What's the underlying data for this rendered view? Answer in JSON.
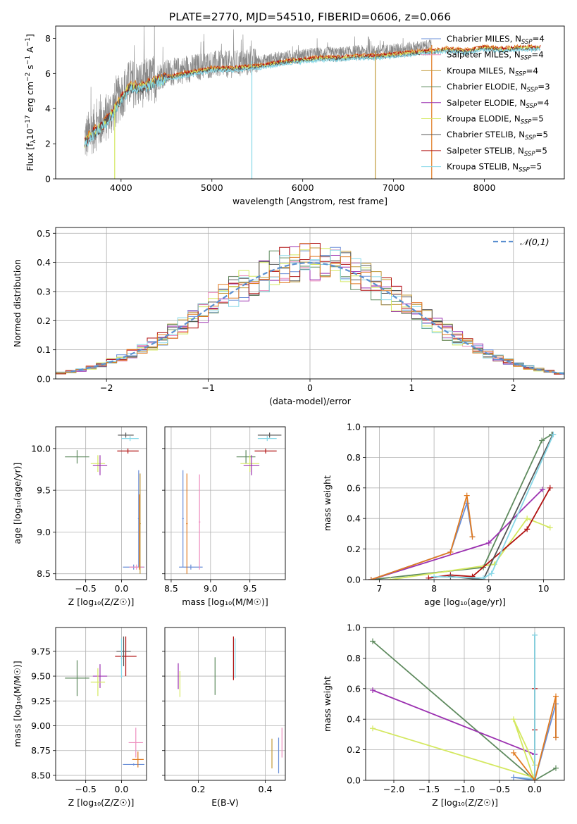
{
  "figure": {
    "title": "PLATE=2770, MJD=54510, FIBERID=0606, z=0.066"
  },
  "colors": {
    "chabrier_miles": "#6a8fd8",
    "salpeter_miles": "#ee8fbf",
    "kroupa_miles": "#c09a3a",
    "chabrier_elodie": "#5e8a5e",
    "salpeter_elodie": "#9b30b0",
    "kroupa_elodie": "#d4e860",
    "chabrier_stelib": "#555555",
    "salpeter_stelib": "#b01010",
    "kroupa_stelib": "#88d8e8",
    "orange_fit": "#e07a20",
    "cyan_fit": "#70d0d8",
    "gaussian": "#5b8fd0",
    "data_gray": "#888888"
  },
  "chart_data": [
    {
      "id": "spectrum",
      "type": "line",
      "title": "PLATE=2770, MJD=54510, FIBERID=0606, z=0.066",
      "xlabel": "wavelength [Angstrom, rest frame]",
      "ylabel_parts": [
        "Flux [f",
        "λ",
        "10",
        "−17",
        " erg cm",
        "−2",
        " s",
        "−1",
        " A",
        "−1",
        "]"
      ],
      "xlim": [
        3280,
        8880
      ],
      "ylim": [
        0,
        8.7
      ],
      "xticks": [
        4000,
        5000,
        6000,
        7000,
        8000
      ],
      "yticks": [
        0,
        2,
        4,
        6,
        8
      ],
      "grid": false,
      "legend_position": "right",
      "legend": [
        {
          "name": "Chabrier MILES",
          "nssp": "4",
          "color_key": "chabrier_miles"
        },
        {
          "name": "Salpeter MILES",
          "nssp": "4",
          "color_key": "salpeter_miles"
        },
        {
          "name": "Kroupa MILES",
          "nssp": "4",
          "color_key": "kroupa_miles"
        },
        {
          "name": "Chabrier ELODIE",
          "nssp": "3",
          "color_key": "chabrier_elodie"
        },
        {
          "name": "Salpeter ELODIE",
          "nssp": "4",
          "color_key": "salpeter_elodie"
        },
        {
          "name": "Kroupa ELODIE",
          "nssp": "5",
          "color_key": "kroupa_elodie"
        },
        {
          "name": "Chabrier STELIB",
          "nssp": "5",
          "color_key": "chabrier_stelib"
        },
        {
          "name": "Salpeter STELIB",
          "nssp": "5",
          "color_key": "salpeter_stelib"
        },
        {
          "name": "Kroupa STELIB",
          "nssp": "5",
          "color_key": "kroupa_stelib"
        }
      ],
      "nssp_label_prefix": "N",
      "nssp_label_sub": "SSP",
      "data_envelope": [
        [
          3600,
          2.4
        ],
        [
          3700,
          3.0
        ],
        [
          3800,
          3.4
        ],
        [
          3900,
          4.0
        ],
        [
          4000,
          4.9
        ],
        [
          4100,
          5.6
        ],
        [
          4200,
          5.5
        ],
        [
          4300,
          5.7
        ],
        [
          4400,
          5.9
        ],
        [
          4500,
          6.1
        ],
        [
          4600,
          6.2
        ],
        [
          4700,
          6.3
        ],
        [
          4800,
          6.4
        ],
        [
          4900,
          6.5
        ],
        [
          5000,
          6.6
        ],
        [
          5200,
          6.6
        ],
        [
          5400,
          6.7
        ],
        [
          5600,
          6.8
        ],
        [
          5800,
          7.0
        ],
        [
          6000,
          7.1
        ],
        [
          6200,
          7.2
        ],
        [
          6400,
          7.2
        ],
        [
          6600,
          7.3
        ],
        [
          6800,
          7.3
        ],
        [
          7000,
          7.4
        ],
        [
          7200,
          7.5
        ],
        [
          7400,
          7.6
        ],
        [
          7600,
          7.7
        ],
        [
          7800,
          7.6
        ],
        [
          8000,
          7.8
        ],
        [
          8200,
          7.7
        ],
        [
          8400,
          7.8
        ],
        [
          8600,
          7.8
        ]
      ],
      "data_xrange": [
        3600,
        7420
      ],
      "model_xrange": [
        3600,
        8620
      ],
      "dips": [
        {
          "x": 3930,
          "min": 0
        },
        {
          "x": 5440,
          "min": 0
        },
        {
          "x": 6800,
          "min": 0
        },
        {
          "x": 7420,
          "min": 0
        }
      ]
    },
    {
      "id": "residuals",
      "type": "step",
      "xlabel": "(data-model)/error",
      "ylabel": "Normed distribution",
      "xlim": [
        -2.5,
        2.5
      ],
      "ylim": [
        0,
        0.52
      ],
      "xticks": [
        -2,
        -1,
        0,
        1,
        2
      ],
      "xtick_labels": [
        "−2",
        "−1",
        "0",
        "1",
        "2"
      ],
      "yticks": [
        0.0,
        0.1,
        0.2,
        0.3,
        0.4,
        0.5
      ],
      "ytick_labels": [
        "0.0",
        "0.1",
        "0.2",
        "0.3",
        "0.4",
        "0.5"
      ],
      "grid": true,
      "bin_edges_start": -2.5,
      "bin_width": 0.1,
      "legend_label": "𝒩(0,1)",
      "legend_position": "top-right"
    },
    {
      "id": "age_vs_Z",
      "type": "errorbar",
      "xlabel": "Z [log₁₀(Z/Z☉)]",
      "ylabel": "age  [log₁₀(age/yr)]",
      "xlim": [
        -0.92,
        0.35
      ],
      "ylim": [
        8.43,
        10.26
      ],
      "xticks": [
        -0.5,
        0.0
      ],
      "xtick_labels": [
        "−0.5",
        "0.0"
      ],
      "yticks": [
        8.5,
        9.0,
        9.5,
        10.0
      ],
      "ytick_labels": [
        "8.5",
        "9.0",
        "9.5",
        "10.0"
      ],
      "grid": true,
      "points": [
        {
          "x": -0.62,
          "y": 9.9,
          "xerr": 0.17,
          "yerr": 0.08,
          "c": "chabrier_elodie"
        },
        {
          "x": -0.33,
          "y": 9.82,
          "xerr": 0.1,
          "yerr": 0.1,
          "c": "kroupa_elodie"
        },
        {
          "x": -0.3,
          "y": 9.8,
          "xerr": 0.1,
          "yerr": 0.12,
          "c": "salpeter_elodie"
        },
        {
          "x": 0.06,
          "y": 10.16,
          "xerr": 0.11,
          "yerr": 0.03,
          "c": "chabrier_stelib"
        },
        {
          "x": 0.12,
          "y": 10.12,
          "xerr": 0.12,
          "yerr": 0.03,
          "c": "kroupa_stelib"
        },
        {
          "x": 0.09,
          "y": 9.97,
          "xerr": 0.15,
          "yerr": 0.03,
          "c": "salpeter_stelib"
        },
        {
          "x": 0.17,
          "y": 8.58,
          "xerr": 0.15,
          "yerr": 0.03,
          "c": "chabrier_miles"
        },
        {
          "x": 0.21,
          "y": 8.58,
          "xerr": 0.1,
          "yerr": 0.03,
          "c": "salpeter_miles"
        },
        {
          "x": 0.24,
          "y": 9.16,
          "xerr": 0.01,
          "yerr": 0.58,
          "c": "chabrier_miles"
        },
        {
          "x": 0.26,
          "y": 9.1,
          "xerr": 0.01,
          "yerr": 0.6,
          "c": "kroupa_miles"
        },
        {
          "x": 0.25,
          "y": 9.0,
          "xerr": 0.01,
          "yerr": 0.45,
          "c": "orange_fit"
        }
      ]
    },
    {
      "id": "age_vs_mass",
      "type": "errorbar",
      "xlabel": "mass [log₁₀(M/M☉)]",
      "ylabel": "",
      "xlim": [
        8.42,
        9.95
      ],
      "ylim": [
        8.43,
        10.26
      ],
      "xticks": [
        8.5,
        9.0,
        9.5
      ],
      "xtick_labels": [
        "8.5",
        "9.0",
        "9.5"
      ],
      "yticks": [
        8.5,
        9.0,
        9.5,
        10.0
      ],
      "ytick_labels": [
        "",
        "",
        "",
        ""
      ],
      "grid": true,
      "points": [
        {
          "x": 9.45,
          "y": 9.9,
          "xerr": 0.12,
          "yerr": 0.08,
          "c": "chabrier_elodie"
        },
        {
          "x": 9.5,
          "y": 9.82,
          "xerr": 0.12,
          "yerr": 0.1,
          "c": "kroupa_elodie"
        },
        {
          "x": 9.52,
          "y": 9.8,
          "xerr": 0.1,
          "yerr": 0.12,
          "c": "salpeter_elodie"
        },
        {
          "x": 9.75,
          "y": 10.16,
          "xerr": 0.15,
          "yerr": 0.03,
          "c": "chabrier_stelib"
        },
        {
          "x": 9.72,
          "y": 10.12,
          "xerr": 0.12,
          "yerr": 0.03,
          "c": "kroupa_stelib"
        },
        {
          "x": 9.7,
          "y": 9.97,
          "xerr": 0.14,
          "yerr": 0.03,
          "c": "salpeter_stelib"
        },
        {
          "x": 8.75,
          "y": 8.58,
          "xerr": 0.15,
          "yerr": 0.03,
          "c": "chabrier_miles"
        },
        {
          "x": 8.65,
          "y": 9.16,
          "xerr": 0.01,
          "yerr": 0.58,
          "c": "chabrier_miles"
        },
        {
          "x": 8.7,
          "y": 9.1,
          "xerr": 0.01,
          "yerr": 0.6,
          "c": "orange_fit"
        },
        {
          "x": 8.86,
          "y": 9.12,
          "xerr": 0.01,
          "yerr": 0.57,
          "c": "salpeter_miles"
        }
      ]
    },
    {
      "id": "weight_vs_age",
      "type": "line",
      "xlabel": "age  [log₁₀(age/yr)]",
      "ylabel": "mass weight",
      "xlim": [
        6.75,
        10.38
      ],
      "ylim": [
        0,
        1.0
      ],
      "xticks": [
        7,
        8,
        9,
        10
      ],
      "xtick_labels": [
        "7",
        "8",
        "9",
        "10"
      ],
      "yticks": [
        0.0,
        0.2,
        0.4,
        0.6,
        0.8,
        1.0
      ],
      "ytick_labels": [
        "0.0",
        "0.2",
        "0.4",
        "0.6",
        "0.8",
        "1.0"
      ],
      "grid": true,
      "series": [
        {
          "c": "chabrier_elodie",
          "x": [
            6.85,
            8.9,
            9.97,
            10.15
          ],
          "y": [
            0.0,
            0.08,
            0.91,
            0.95
          ]
        },
        {
          "c": "salpeter_elodie",
          "x": [
            6.85,
            9.0,
            9.98
          ],
          "y": [
            0.0,
            0.24,
            0.59
          ]
        },
        {
          "c": "kroupa_elodie",
          "x": [
            7.2,
            9.1,
            9.7,
            10.12
          ],
          "y": [
            0.0,
            0.1,
            0.4,
            0.34
          ]
        },
        {
          "c": "salpeter_stelib",
          "x": [
            7.9,
            8.3,
            8.7,
            9.7,
            10.12
          ],
          "y": [
            0.01,
            0.03,
            0.02,
            0.33,
            0.6
          ]
        },
        {
          "c": "chabrier_stelib",
          "x": [
            8.3,
            8.9,
            10.17
          ],
          "y": [
            0.02,
            0.0,
            0.95
          ]
        },
        {
          "c": "kroupa_stelib",
          "x": [
            8.0,
            8.9,
            9.05,
            10.18
          ],
          "y": [
            0.02,
            0.01,
            0.04,
            0.95
          ]
        },
        {
          "c": "chabrier_miles",
          "x": [
            6.85,
            8.3,
            8.6,
            8.7
          ],
          "y": [
            0.0,
            0.18,
            0.5,
            0.28
          ]
        },
        {
          "c": "orange_fit",
          "x": [
            6.85,
            8.3,
            8.6,
            8.7
          ],
          "y": [
            0.0,
            0.18,
            0.55,
            0.28
          ]
        }
      ]
    },
    {
      "id": "mass_vs_Z",
      "type": "errorbar",
      "xlabel": "Z [log₁₀(Z/Z☉)]",
      "ylabel": "mass [log₁₀(M/M☉)]",
      "xlim": [
        -0.92,
        0.35
      ],
      "ylim": [
        8.45,
        9.99
      ],
      "xticks": [
        -0.5,
        0.0
      ],
      "xtick_labels": [
        "−0.5",
        "0.0"
      ],
      "yticks": [
        8.5,
        8.75,
        9.0,
        9.25,
        9.5,
        9.75
      ],
      "ytick_labels": [
        "8.50",
        "8.75",
        "9.00",
        "9.25",
        "9.50",
        "9.75"
      ],
      "grid": true,
      "points": [
        {
          "x": -0.62,
          "y": 9.48,
          "xerr": 0.17,
          "yerr": 0.18,
          "c": "chabrier_elodie"
        },
        {
          "x": -0.3,
          "y": 9.5,
          "xerr": 0.1,
          "yerr": 0.12,
          "c": "salpeter_elodie"
        },
        {
          "x": -0.33,
          "y": 9.44,
          "xerr": 0.1,
          "yerr": 0.14,
          "c": "kroupa_elodie"
        },
        {
          "x": 0.06,
          "y": 9.7,
          "xerr": 0.15,
          "yerr": 0.2,
          "c": "salpeter_stelib"
        },
        {
          "x": 0.03,
          "y": 9.75,
          "xerr": 0.1,
          "yerr": 0.15,
          "c": "chabrier_stelib"
        },
        {
          "x": 0.0,
          "y": 9.68,
          "xerr": 0.01,
          "yerr": 0.2,
          "c": "kroupa_stelib"
        },
        {
          "x": 0.2,
          "y": 8.83,
          "xerr": 0.1,
          "yerr": 0.15,
          "c": "salpeter_miles"
        },
        {
          "x": 0.17,
          "y": 8.61,
          "xerr": 0.15,
          "yerr": 0.01,
          "c": "chabrier_miles"
        },
        {
          "x": 0.23,
          "y": 8.66,
          "xerr": 0.08,
          "yerr": 0.08,
          "c": "orange_fit"
        }
      ]
    },
    {
      "id": "mass_vs_ebv",
      "type": "errorbar",
      "xlabel": "E(B-V)",
      "ylabel": "",
      "xlim": [
        0.1,
        0.46
      ],
      "ylim": [
        8.45,
        9.99
      ],
      "xticks": [
        0.2,
        0.4
      ],
      "xtick_labels": [
        "0.2",
        "0.4"
      ],
      "yticks": [
        8.5,
        8.75,
        9.0,
        9.25,
        9.5,
        9.75
      ],
      "ytick_labels": [
        "",
        "",
        "",
        "",
        "",
        ""
      ],
      "grid": true,
      "points": [
        {
          "x": 0.14,
          "y": 9.5,
          "xerr": 0.0,
          "yerr": 0.13,
          "c": "salpeter_elodie"
        },
        {
          "x": 0.145,
          "y": 9.42,
          "xerr": 0.0,
          "yerr": 0.13,
          "c": "kroupa_elodie"
        },
        {
          "x": 0.25,
          "y": 9.5,
          "xerr": 0.0,
          "yerr": 0.19,
          "c": "chabrier_elodie"
        },
        {
          "x": 0.305,
          "y": 9.68,
          "xerr": 0.0,
          "yerr": 0.22,
          "c": "salpeter_stelib"
        },
        {
          "x": 0.31,
          "y": 9.68,
          "xerr": 0.0,
          "yerr": 0.2,
          "c": "kroupa_stelib"
        },
        {
          "x": 0.42,
          "y": 8.72,
          "xerr": 0.0,
          "yerr": 0.15,
          "c": "kroupa_miles"
        },
        {
          "x": 0.44,
          "y": 8.7,
          "xerr": 0.0,
          "yerr": 0.18,
          "c": "chabrier_miles"
        },
        {
          "x": 0.45,
          "y": 8.83,
          "xerr": 0.0,
          "yerr": 0.15,
          "c": "salpeter_miles"
        }
      ]
    },
    {
      "id": "weight_vs_Z",
      "type": "line",
      "xlabel": "Z [log₁₀(Z/Z☉)]",
      "ylabel": "mass weight",
      "xlim": [
        -2.4,
        0.42
      ],
      "ylim": [
        0,
        1.0
      ],
      "xticks": [
        -2.0,
        -1.5,
        -1.0,
        -0.5,
        0.0
      ],
      "xtick_labels": [
        "−2.0",
        "−1.5",
        "−1.0",
        "−0.5",
        "0.0"
      ],
      "yticks": [
        0.0,
        0.2,
        0.4,
        0.6,
        0.8,
        1.0
      ],
      "ytick_labels": [
        "0.0",
        "0.2",
        "0.4",
        "0.6",
        "0.8",
        "1.0"
      ],
      "grid": true,
      "series": [
        {
          "c": "chabrier_elodie",
          "x": [
            -2.3,
            0.0,
            0.3
          ],
          "y": [
            0.91,
            0.0,
            0.08
          ]
        },
        {
          "c": "salpeter_elodie",
          "x": [
            -2.3,
            0.0,
            0.0
          ],
          "y": [
            0.59,
            0.17,
            0.0
          ]
        },
        {
          "c": "kroupa_elodie",
          "x": [
            -2.3,
            -0.02,
            -0.3,
            0.0
          ],
          "y": [
            0.34,
            0.02,
            0.4,
            0.1
          ]
        },
        {
          "c": "salpeter_stelib",
          "x": [
            0.0,
            0.0,
            0.0
          ],
          "y": [
            0.0,
            0.33,
            0.6
          ]
        },
        {
          "c": "chabrier_stelib",
          "x": [
            0.0,
            0.0
          ],
          "y": [
            0.0,
            0.95
          ]
        },
        {
          "c": "kroupa_stelib",
          "x": [
            -0.3,
            0.0,
            0.0
          ],
          "y": [
            0.02,
            0.01,
            0.95
          ]
        },
        {
          "c": "chabrier_miles",
          "x": [
            -0.3,
            0.0,
            0.3,
            0.3
          ],
          "y": [
            0.02,
            0.0,
            0.5,
            0.28
          ]
        },
        {
          "c": "orange_fit",
          "x": [
            -0.3,
            0.0,
            0.3,
            0.3
          ],
          "y": [
            0.18,
            0.0,
            0.55,
            0.28
          ]
        }
      ]
    }
  ]
}
